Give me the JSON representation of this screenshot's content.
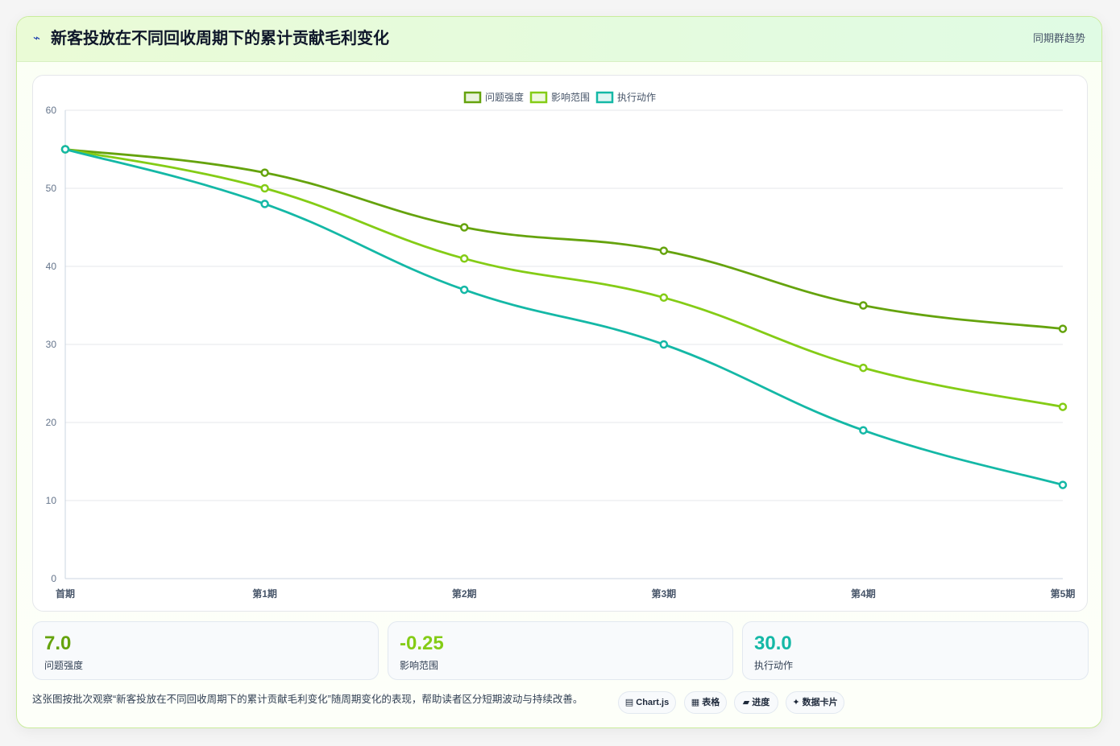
{
  "header": {
    "icon": "trend-icon",
    "title": "新客投放在不同回收周期下的累计贡献毛利变化",
    "tag": "同期群趋势"
  },
  "chart_data": {
    "type": "line",
    "x": [
      "首期",
      "第1期",
      "第2期",
      "第3期",
      "第4期",
      "第5期"
    ],
    "series": [
      {
        "name": "问题强度",
        "values": [
          55,
          52,
          45,
          42,
          35,
          32
        ],
        "color": "#65a30d"
      },
      {
        "name": "影响范围",
        "values": [
          55,
          50,
          41,
          36,
          27,
          22
        ],
        "color": "#84cc16"
      },
      {
        "name": "执行动作",
        "values": [
          55,
          48,
          37,
          30,
          19,
          12
        ],
        "color": "#14b8a6"
      }
    ],
    "ylim": [
      0,
      60
    ],
    "yticks": [
      0,
      10,
      20,
      30,
      40,
      50,
      60
    ],
    "grid": true,
    "legend": "top-center"
  },
  "stats": [
    {
      "value": "7.0",
      "label": "问题强度",
      "color": "#65a30d"
    },
    {
      "value": "-0.25",
      "label": "影响范围",
      "color": "#84cc16"
    },
    {
      "value": "30.0",
      "label": "执行动作",
      "color": "#14b8a6"
    }
  ],
  "footer": {
    "text": "这张图按批次观察“新客投放在不同回收周期下的累计贡献毛利变化”随周期变化的表现，帮助读者区分短期波动与持续改善。"
  },
  "chips": [
    {
      "icon": "▤",
      "label": "Chart.js"
    },
    {
      "icon": "▦",
      "label": "表格"
    },
    {
      "icon": "▰",
      "label": "进度"
    },
    {
      "icon": "✦",
      "label": "数据卡片"
    }
  ]
}
